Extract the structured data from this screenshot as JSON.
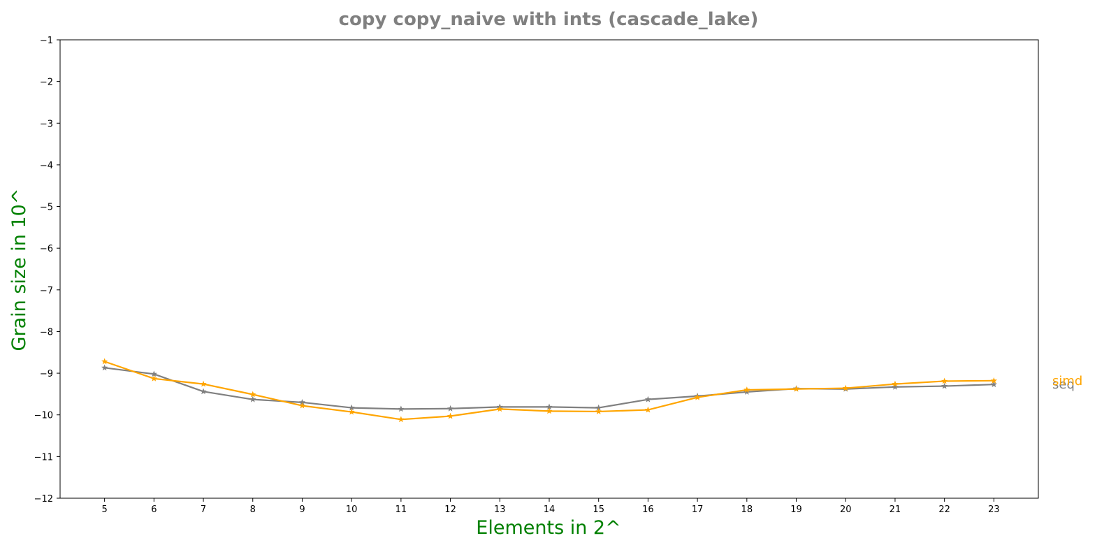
{
  "chart_data": {
    "type": "line",
    "title": "copy copy_naive with ints  (cascade_lake)",
    "xlabel": "Elements in 2^",
    "ylabel": "Grain size in 10^",
    "x": [
      5,
      6,
      7,
      8,
      9,
      10,
      11,
      12,
      13,
      14,
      15,
      16,
      17,
      18,
      19,
      20,
      21,
      22,
      23
    ],
    "xlim": [
      4.1,
      23.9
    ],
    "ylim": [
      -12,
      -1
    ],
    "yticks": [
      -12,
      -11,
      -10,
      -9,
      -8,
      -7,
      -6,
      -5,
      -4,
      -3,
      -2,
      -1
    ],
    "grid": false,
    "legend": "none (series names printed at right end of lines)",
    "series": [
      {
        "name": "seq",
        "color": "#808080",
        "marker": "star",
        "values": [
          -8.87,
          -9.02,
          -9.44,
          -9.63,
          -9.7,
          -9.83,
          -9.86,
          -9.85,
          -9.81,
          -9.81,
          -9.83,
          -9.63,
          -9.55,
          -9.45,
          -9.37,
          -9.38,
          -9.33,
          -9.31,
          -9.27
        ]
      },
      {
        "name": "simd",
        "color": "#ffa500",
        "marker": "star",
        "values": [
          -8.72,
          -9.13,
          -9.26,
          -9.51,
          -9.78,
          -9.93,
          -10.11,
          -10.03,
          -9.86,
          -9.91,
          -9.92,
          -9.88,
          -9.58,
          -9.4,
          -9.38,
          -9.36,
          -9.26,
          -9.19,
          -9.18
        ]
      }
    ]
  },
  "colors": {
    "title": "#808080",
    "axis_label": "#008000",
    "axes": "#000000"
  }
}
